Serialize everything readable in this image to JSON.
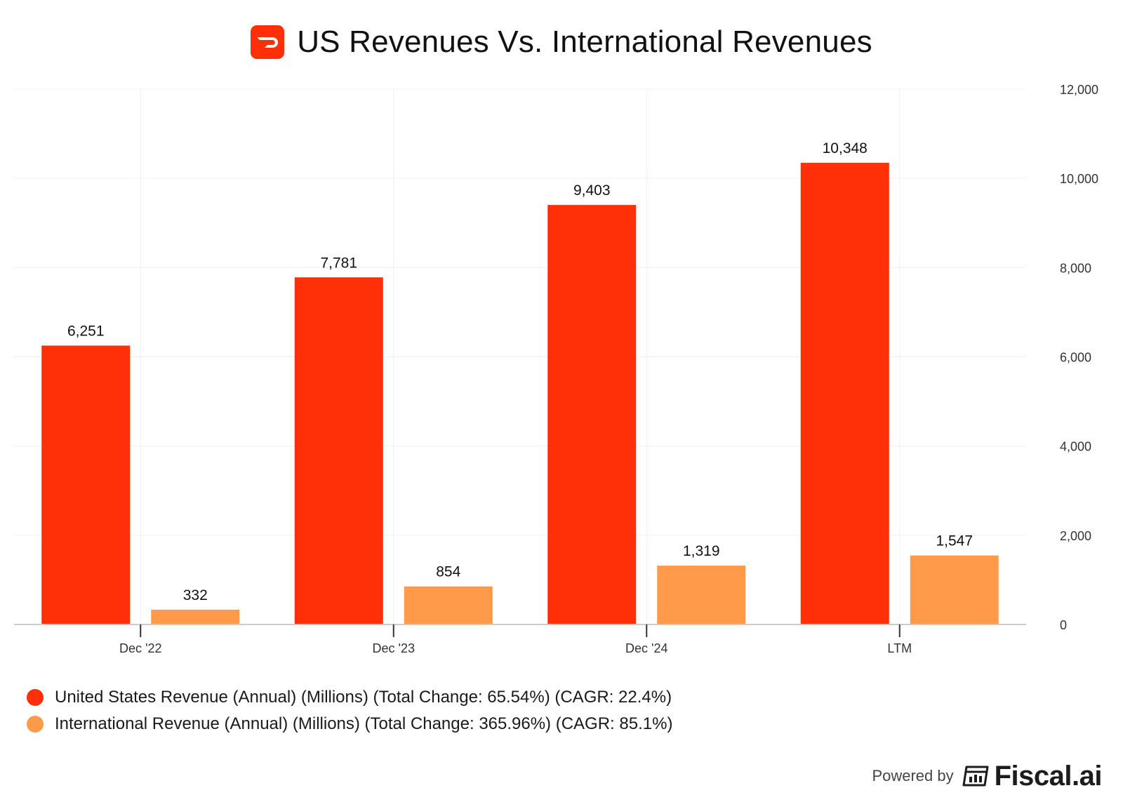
{
  "header": {
    "title": "US Revenues Vs. International Revenues",
    "logo_icon": "doordash-logo-icon"
  },
  "colors": {
    "us": "#ff3008",
    "intl": "#ff9a4a",
    "grid": "#f0f0f0",
    "axis": "#cccccc",
    "logo_bg": "#ff3008"
  },
  "chart_data": {
    "type": "bar",
    "title": "US Revenues Vs. International Revenues",
    "categories": [
      "Dec '22",
      "Dec '23",
      "Dec '24",
      "LTM"
    ],
    "series": [
      {
        "name": "United States Revenue (Annual) (Millions) (Total Change: 65.54%) (CAGR: 22.4%)",
        "values": [
          6251,
          7781,
          9403,
          10348
        ],
        "labels": [
          "6,251",
          "7,781",
          "9,403",
          "10,348"
        ]
      },
      {
        "name": "International Revenue (Annual) (Millions) (Total Change: 365.96%) (CAGR: 85.1%)",
        "values": [
          332,
          854,
          1319,
          1547
        ],
        "labels": [
          "332",
          "854",
          "1,319",
          "1,547"
        ]
      }
    ],
    "yticks": [
      0,
      2000,
      4000,
      6000,
      8000,
      10000,
      12000
    ],
    "ytick_labels": [
      "0",
      "2,000",
      "4,000",
      "6,000",
      "8,000",
      "10,000",
      "12,000"
    ],
    "ylim": [
      0,
      12000
    ],
    "xlabel": "",
    "ylabel": "",
    "y_axis_side": "right",
    "grid": true,
    "legend_position": "bottom-left"
  },
  "legend": {
    "items": [
      {
        "label": "United States Revenue (Annual) (Millions) (Total Change: 65.54%) (CAGR: 22.4%)"
      },
      {
        "label": "International Revenue (Annual) (Millions) (Total Change: 365.96%) (CAGR: 85.1%)"
      }
    ]
  },
  "footer": {
    "powered_by": "Powered by",
    "brand": "Fiscal.ai",
    "brand_icon": "fiscal-ai-logo-icon"
  }
}
